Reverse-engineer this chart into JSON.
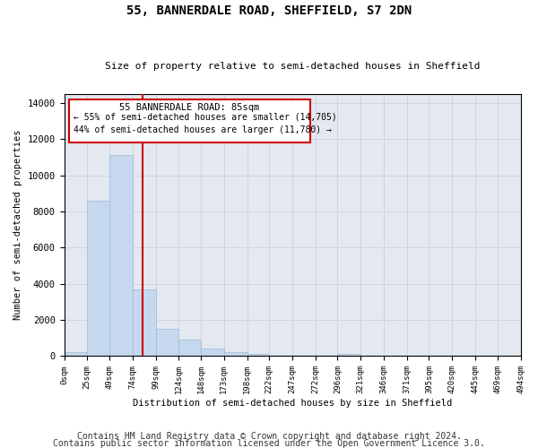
{
  "title1": "55, BANNERDALE ROAD, SHEFFIELD, S7 2DN",
  "title2": "Size of property relative to semi-detached houses in Sheffield",
  "xlabel": "Distribution of semi-detached houses by size in Sheffield",
  "ylabel": "Number of semi-detached properties",
  "bar_color": "#c5d8ed",
  "bar_edge_color": "#9bbcd8",
  "grid_color": "#c8ccd8",
  "background_color": "#e4e8f0",
  "vline_x": 85,
  "vline_color": "#cc0000",
  "annotation_text1": "55 BANNERDALE ROAD: 85sqm",
  "annotation_text2": "← 55% of semi-detached houses are smaller (14,705)",
  "annotation_text3": "44% of semi-detached houses are larger (11,780) →",
  "annotation_box_color": "#ffffff",
  "annotation_border_color": "#cc0000",
  "bin_edges": [
    0,
    25,
    49,
    74,
    99,
    124,
    148,
    173,
    198,
    222,
    247,
    272,
    296,
    321,
    346,
    371,
    395,
    420,
    445,
    469,
    494
  ],
  "bin_heights": [
    200,
    8600,
    11100,
    3700,
    1500,
    900,
    400,
    200,
    100,
    0,
    0,
    0,
    100,
    0,
    0,
    0,
    0,
    0,
    0,
    0
  ],
  "ylim": [
    0,
    14500
  ],
  "yticks": [
    0,
    2000,
    4000,
    6000,
    8000,
    10000,
    12000,
    14000
  ],
  "footer_line1": "Contains HM Land Registry data © Crown copyright and database right 2024.",
  "footer_line2": "Contains public sector information licensed under the Open Government Licence 3.0.",
  "footer_fontsize": 7
}
